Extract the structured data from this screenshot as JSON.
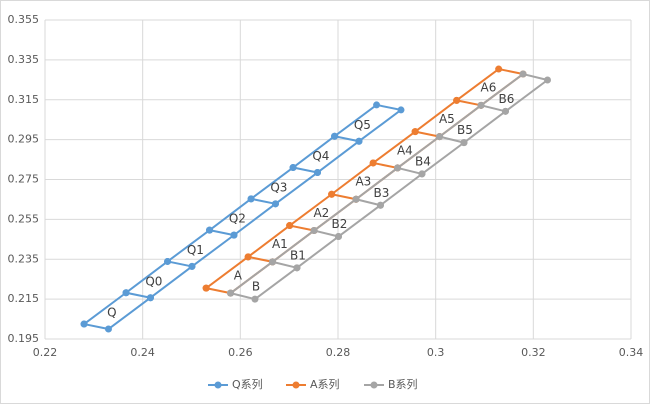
{
  "chart_data": {
    "type": "scatter-line",
    "xlim": [
      0.22,
      0.34
    ],
    "xticks": [
      0.22,
      0.24,
      0.26,
      0.28,
      0.3,
      0.32,
      0.34
    ],
    "ylim": [
      0.195,
      0.355
    ],
    "yticks": [
      0.195,
      0.215,
      0.235,
      0.255,
      0.275,
      0.295,
      0.315,
      0.335,
      0.355
    ],
    "grid": true,
    "legend": "bottom",
    "series": [
      {
        "name": "Q系列",
        "color": "#5b9bd5",
        "x": [
          0.228,
          0.2366,
          0.2451,
          0.2537,
          0.2622,
          0.2708,
          0.2793,
          0.2879,
          0.2929,
          0.2843,
          0.2758,
          0.2672,
          0.2587,
          0.2501,
          0.2416,
          0.233,
          0.228,
          null,
          0.2366,
          0.2416,
          null,
          0.2451,
          0.2501,
          null,
          0.2537,
          0.2587,
          null,
          0.2622,
          0.2672,
          null,
          0.2708,
          0.2758,
          null,
          0.2793,
          0.2843
        ],
        "y": [
          0.2025,
          0.2182,
          0.2339,
          0.2496,
          0.2653,
          0.281,
          0.2967,
          0.3124,
          0.3099,
          0.2942,
          0.2785,
          0.2628,
          0.2471,
          0.2314,
          0.2157,
          0.2,
          0.2025,
          null,
          0.2182,
          0.2157,
          null,
          0.2339,
          0.2314,
          null,
          0.2496,
          0.2471,
          null,
          0.2653,
          0.2628,
          null,
          0.281,
          0.2785,
          null,
          0.2967,
          0.2942
        ]
      },
      {
        "name": "A系列",
        "color": "#ed7d31",
        "x": [
          0.253,
          0.2616,
          0.2701,
          0.2787,
          0.2872,
          0.2958,
          0.3043,
          0.3129,
          0.3179,
          0.3093,
          0.3008,
          0.2922,
          0.2837,
          0.2751,
          0.2666,
          0.258,
          0.253,
          null,
          0.2616,
          0.2666,
          null,
          0.2701,
          0.2751,
          null,
          0.2787,
          0.2837,
          null,
          0.2872,
          0.2922,
          null,
          0.2958,
          0.3008,
          null,
          0.3043,
          0.3093
        ],
        "y": [
          0.2205,
          0.2362,
          0.2519,
          0.2676,
          0.2833,
          0.299,
          0.3147,
          0.3304,
          0.3279,
          0.3122,
          0.2965,
          0.2808,
          0.2651,
          0.2494,
          0.2337,
          0.218,
          0.2205,
          null,
          0.2362,
          0.2337,
          null,
          0.2519,
          0.2494,
          null,
          0.2676,
          0.2651,
          null,
          0.2833,
          0.2808,
          null,
          0.299,
          0.2965,
          null,
          0.3147,
          0.3122
        ]
      },
      {
        "name": "B系列",
        "color": "#a5a5a5",
        "x": [
          0.258,
          0.2666,
          0.2751,
          0.2837,
          0.2922,
          0.3008,
          0.3093,
          0.3179,
          0.3229,
          0.3143,
          0.3058,
          0.2972,
          0.2887,
          0.2801,
          0.2716,
          0.263,
          0.258,
          null,
          0.2666,
          0.2716,
          null,
          0.2751,
          0.2801,
          null,
          0.2837,
          0.2887,
          null,
          0.2922,
          0.2972,
          null,
          0.3008,
          0.3058,
          null,
          0.3093,
          0.3143
        ],
        "y": [
          0.218,
          0.2337,
          0.2494,
          0.2651,
          0.2808,
          0.2965,
          0.3122,
          0.3279,
          0.3249,
          0.3092,
          0.2935,
          0.2778,
          0.2621,
          0.2464,
          0.2307,
          0.215,
          0.218,
          null,
          0.2337,
          0.2307,
          null,
          0.2494,
          0.2464,
          null,
          0.2651,
          0.2621,
          null,
          0.2808,
          0.2778,
          null,
          0.2965,
          0.2935,
          null,
          0.3122,
          0.3092
        ]
      }
    ],
    "annotations": [
      {
        "text": "Q",
        "x": 0.2337,
        "y": 0.208
      },
      {
        "text": "Q0",
        "x": 0.2423,
        "y": 0.2237
      },
      {
        "text": "Q1",
        "x": 0.2508,
        "y": 0.2394
      },
      {
        "text": "Q2",
        "x": 0.2594,
        "y": 0.2551
      },
      {
        "text": "Q3",
        "x": 0.2679,
        "y": 0.2708
      },
      {
        "text": "Q4",
        "x": 0.2765,
        "y": 0.2865
      },
      {
        "text": "Q5",
        "x": 0.285,
        "y": 0.3022
      },
      {
        "text": "A",
        "x": 0.2595,
        "y": 0.2266
      },
      {
        "text": "A1",
        "x": 0.2681,
        "y": 0.2423
      },
      {
        "text": "A2",
        "x": 0.2766,
        "y": 0.258
      },
      {
        "text": "A3",
        "x": 0.2852,
        "y": 0.2737
      },
      {
        "text": "A4",
        "x": 0.2937,
        "y": 0.2894
      },
      {
        "text": "A5",
        "x": 0.3023,
        "y": 0.3051
      },
      {
        "text": "A6",
        "x": 0.3108,
        "y": 0.3208
      },
      {
        "text": "B",
        "x": 0.2632,
        "y": 0.221
      },
      {
        "text": "B1",
        "x": 0.2718,
        "y": 0.2367
      },
      {
        "text": "B2",
        "x": 0.2803,
        "y": 0.2524
      },
      {
        "text": "B3",
        "x": 0.2889,
        "y": 0.2681
      },
      {
        "text": "B4",
        "x": 0.2974,
        "y": 0.2838
      },
      {
        "text": "B5",
        "x": 0.306,
        "y": 0.2995
      },
      {
        "text": "B6",
        "x": 0.3145,
        "y": 0.3152
      }
    ]
  }
}
